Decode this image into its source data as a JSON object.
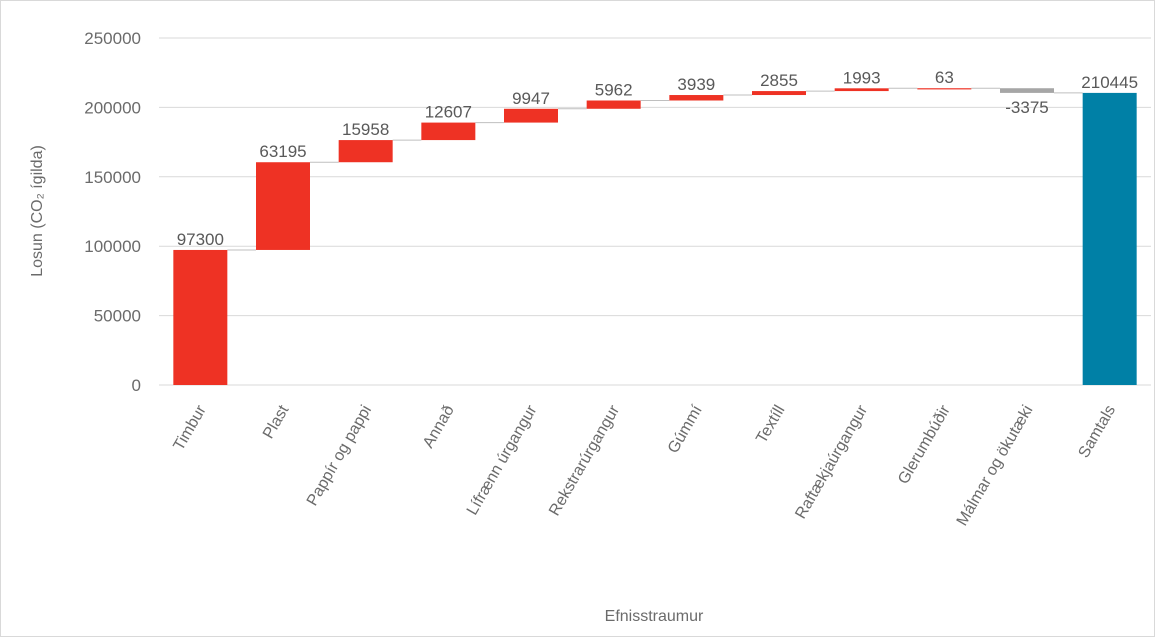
{
  "chart_data": {
    "type": "bar",
    "subtype": "waterfall",
    "title": "",
    "xlabel": "Efnisstraumur",
    "ylabel": "Losun (CO₂ ígilda)",
    "ylim": [
      0,
      250000
    ],
    "yticks": [
      "0",
      "50000",
      "100000",
      "150000",
      "200000",
      "250000"
    ],
    "grid": true,
    "categories": [
      "Timbur",
      "Plast",
      "Pappír og pappi",
      "Annað",
      "Lífrænn úrgangur",
      "Rekstrarúrgangur",
      "Gúmmí",
      "Textíll",
      "Raftækjaúrgangur",
      "Glerumbúðir",
      "Málmar og ökutæki",
      "Samtals"
    ],
    "values": [
      97300,
      63195,
      15958,
      12607,
      9947,
      5962,
      3939,
      2855,
      1993,
      63,
      -3375,
      210445
    ],
    "data_labels": [
      "97300",
      "63195",
      "15958",
      "12607",
      "9947",
      "5962",
      "3939",
      "2855",
      "1993",
      "63",
      "-3375",
      "210445"
    ],
    "total_index": 11,
    "colors": {
      "increase": "#ee3224",
      "decrease": "#a6a6a6",
      "total": "#0080a6",
      "gridline": "#d9d9d9",
      "connector": "#bfbfbf"
    }
  }
}
